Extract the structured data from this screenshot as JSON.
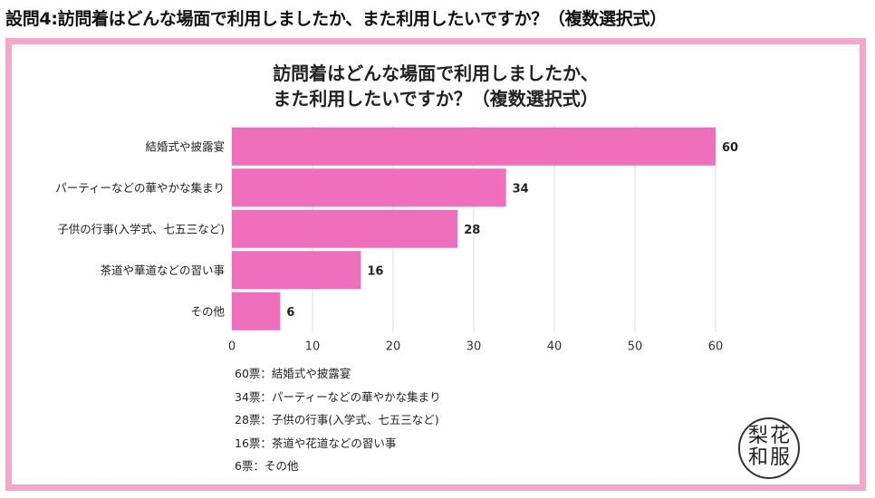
{
  "page": {
    "heading": "設問4:訪問着はどんな場面で利用しましたか、また利用したいですか？（複数選択式）"
  },
  "chart_data": {
    "type": "bar",
    "orientation": "horizontal",
    "title_lines": [
      "訪問着はどんな場面で利用しましたか、",
      "また利用したいですか？（複数選択式）"
    ],
    "categories": [
      "結婚式や披露宴",
      "パーティーなどの華やかな集まり",
      "子供の行事(入学式、七五三など)",
      "茶道や華道などの習い事",
      "その他"
    ],
    "values": [
      60,
      34,
      28,
      16,
      6
    ],
    "data_labels": [
      "60",
      "34",
      "28",
      "16",
      "6"
    ],
    "xlim": [
      0,
      60
    ],
    "x_ticks": [
      "0",
      "10",
      "20",
      "30",
      "40",
      "50",
      "60"
    ],
    "grid": true,
    "bar_color": "#f06fbd",
    "grid_color": "#dddddd",
    "frame_color": "#f6a7c7"
  },
  "footnotes": [
    "60票：結婚式や披露宴",
    "34票：パーティーなどの華やかな集まり",
    "28票：子供の行事(入学式、七五三など)",
    "16票：茶道や花道などの習い事",
    "6票：その他"
  ],
  "logo": {
    "text": "梨花和服",
    "glyphs": [
      "梨",
      "花",
      "和",
      "服"
    ]
  }
}
